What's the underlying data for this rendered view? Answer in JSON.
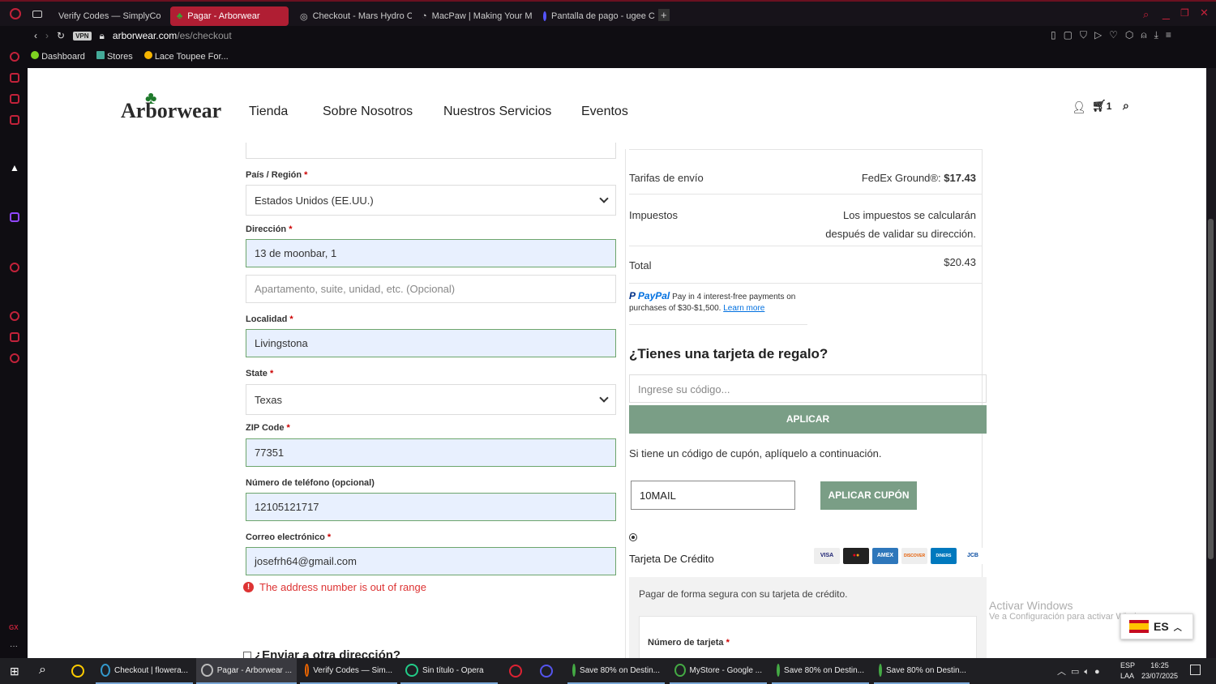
{
  "browser": {
    "tabs": [
      {
        "label": "Verify Codes — SimplyCo"
      },
      {
        "label": "Pagar - Arborwear",
        "active": true
      },
      {
        "label": "Checkout - Mars Hydro C"
      },
      {
        "label": "MacPaw | Making Your M"
      },
      {
        "label": "Pantalla de pago - ugee C"
      }
    ],
    "vpn": "VPN",
    "url_host": "arborwear.com",
    "url_path": "/es/checkout",
    "bookmarks": [
      "Dashboard",
      "Stores",
      "Lace Toupee For..."
    ],
    "accent": "#b01e33"
  },
  "site": {
    "logo": "Arborwear",
    "nav": [
      "Tienda",
      "Sobre Nosotros",
      "Nuestros Servicios",
      "Eventos"
    ],
    "cart_count": "1"
  },
  "form": {
    "country_label": "País / Región",
    "country_value": "Estados Unidos (EE.UU.)",
    "address_label": "Dirección",
    "address_value": "13 de moonbar, 1",
    "address2_placeholder": "Apartamento, suite, unidad, etc. (Opcional)",
    "city_label": "Localidad",
    "city_value": "Livingstona",
    "state_label": "State",
    "state_value": "Texas",
    "zip_label": "ZIP Code",
    "zip_value": "77351",
    "phone_label": "Número de teléfono (opcional)",
    "phone_value": "12105121717",
    "email_label": "Correo electrónico",
    "email_value": "josefrh64@gmail.com",
    "error": "The address number is out of range",
    "ship_other": "¿Enviar a otra dirección?",
    "required": "*"
  },
  "summary": {
    "shipping_label": "Tarifas de envío",
    "shipping_method": "FedEx Ground®:",
    "shipping_price": "$17.43",
    "tax_label": "Impuestos",
    "tax_value": "Los impuestos se calcularán después de validar su dirección.",
    "total_label": "Total",
    "total_value": "$20.43",
    "paypal_brand": "PayPal",
    "paypal_text": "Pay in 4 interest-free payments on purchases of $30-$1,500.",
    "paypal_link": "Learn more",
    "gift_title": "¿Tienes una tarjeta de regalo?",
    "gift_placeholder": "Ingrese su código...",
    "gift_button": "APLICAR",
    "coupon_text": "Si tiene un código de cupón, aplíquelo a continuación.",
    "coupon_value": "10MAIL",
    "coupon_button": "APLICAR CUPÓN",
    "pay_method": "Tarjeta De Crédito",
    "cards": [
      "VISA",
      "MC",
      "AMEX",
      "DISCOVER",
      "DINERS",
      "JCB"
    ],
    "pay_secure": "Pagar de forma segura con su tarjeta de crédito.",
    "card_number_label": "Número de tarjeta"
  },
  "overlay": {
    "activate_title": "Activar Windows",
    "activate_sub": "Ve a Configuración para activar Windows.",
    "lang": "ES"
  },
  "taskbar": {
    "items": [
      "Checkout | flowera...",
      "Pagar - Arborwear ...",
      "Verify Codes — Sim...",
      "Sin título - Opera",
      "Save 80% on Destin...",
      "MyStore - Google ...",
      "Save 80% on Destin...",
      "Save 80% on Destin..."
    ],
    "lang1": "ESP",
    "lang2": "LAA",
    "time": "16:25",
    "date": "23/07/2025"
  }
}
